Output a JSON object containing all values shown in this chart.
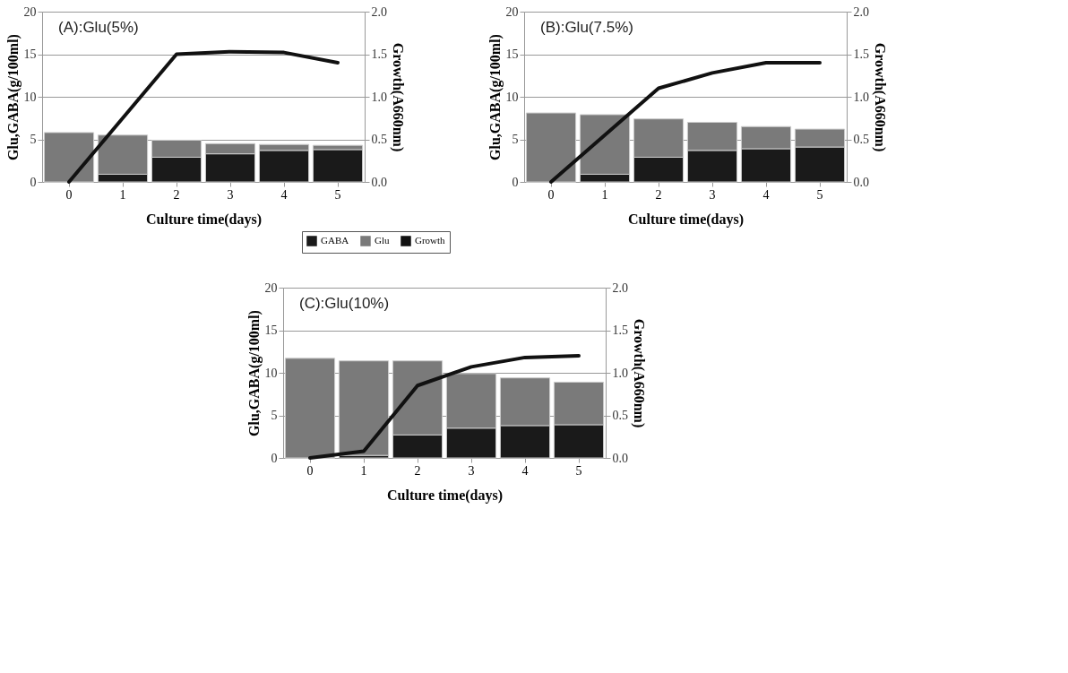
{
  "chart_data": [
    {
      "type": "bar",
      "title": "(A):Glu(5%)",
      "xlabel": "Culture time(days)",
      "ylabel": "Glu,GABA(g/100ml)",
      "y2label": "Growth(A660nm)",
      "categories": [
        "0",
        "1",
        "2",
        "3",
        "4",
        "5"
      ],
      "stacked": true,
      "grid": "y",
      "legend": "bottom right",
      "ylim": [
        0,
        20
      ],
      "yticks": [
        0,
        5,
        10,
        15,
        20
      ],
      "y2lim": [
        0,
        2
      ],
      "y2ticks": [
        {
          "value": 0,
          "label": "0.0"
        },
        {
          "value": 0.5,
          "label": "0.5"
        },
        {
          "value": 1,
          "label": "1.0"
        },
        {
          "value": 1.5,
          "label": "1.5"
        },
        {
          "value": 2,
          "label": "2.0"
        }
      ],
      "series": [
        {
          "name": "GABA",
          "color": "#1a1a1a",
          "values": [
            0,
            0.9,
            2.9,
            3.3,
            3.7,
            3.8
          ]
        },
        {
          "name": "Glu",
          "color": "#7a7a7a",
          "values": [
            5.8,
            4.6,
            2.0,
            1.2,
            0.7,
            0.5
          ]
        },
        {
          "name": "Growth",
          "type": "line",
          "axis": "y2",
          "color": "#111111",
          "values": [
            0,
            0.75,
            1.5,
            1.53,
            1.52,
            1.4
          ]
        }
      ]
    },
    {
      "type": "bar",
      "title": "(B):Glu(7.5%)",
      "xlabel": "Culture time(days)",
      "ylabel": "Glu,GABA(g/100ml)",
      "y2label": "Growth(A660nm)",
      "categories": [
        "0",
        "1",
        "2",
        "3",
        "4",
        "5"
      ],
      "stacked": true,
      "grid": "y",
      "ylim": [
        0,
        20
      ],
      "yticks": [
        0,
        5,
        10,
        15,
        20
      ],
      "y2lim": [
        0,
        2
      ],
      "y2ticks": [
        {
          "value": 0,
          "label": "0.0"
        },
        {
          "value": 0.5,
          "label": "0.5"
        },
        {
          "value": 1,
          "label": "1.0"
        },
        {
          "value": 1.5,
          "label": "1.5"
        },
        {
          "value": 2,
          "label": "2.0"
        }
      ],
      "series": [
        {
          "color": "#1a1a1a",
          "values": [
            0,
            0.9,
            2.9,
            3.7,
            3.9,
            4.1
          ]
        },
        {
          "color": "#7a7a7a",
          "values": [
            8.1,
            7.0,
            4.5,
            3.3,
            2.6,
            2.1
          ]
        },
        {
          "type": "line",
          "axis": "y2",
          "color": "#111111",
          "values": [
            0,
            0.55,
            1.1,
            1.28,
            1.4,
            1.4
          ]
        }
      ]
    },
    {
      "type": "bar",
      "title": "(C):Glu(10%)",
      "xlabel": "Culture time(days)",
      "ylabel": "Glu,GABA(g/100ml)",
      "y2label": "Growth(A660nm)",
      "categories": [
        "0",
        "1",
        "2",
        "3",
        "4",
        "5"
      ],
      "stacked": true,
      "grid": "y",
      "ylim": [
        0,
        20
      ],
      "yticks": [
        0,
        5,
        10,
        15,
        20
      ],
      "y2lim": [
        0,
        2
      ],
      "y2ticks": [
        {
          "value": 0,
          "label": "0.0"
        },
        {
          "value": 0.5,
          "label": "0.5"
        },
        {
          "value": 1,
          "label": "1.0"
        },
        {
          "value": 1.5,
          "label": "1.5"
        },
        {
          "value": 2,
          "label": "2.0"
        }
      ],
      "series": [
        {
          "color": "#1a1a1a",
          "values": [
            0,
            0.3,
            2.7,
            3.5,
            3.8,
            3.9
          ]
        },
        {
          "color": "#7a7a7a",
          "values": [
            11.7,
            11.1,
            8.7,
            6.4,
            5.6,
            5.0
          ]
        },
        {
          "type": "line",
          "axis": "y2",
          "color": "#111111",
          "values": [
            0,
            0.08,
            0.85,
            1.07,
            1.18,
            1.2
          ]
        }
      ]
    }
  ]
}
